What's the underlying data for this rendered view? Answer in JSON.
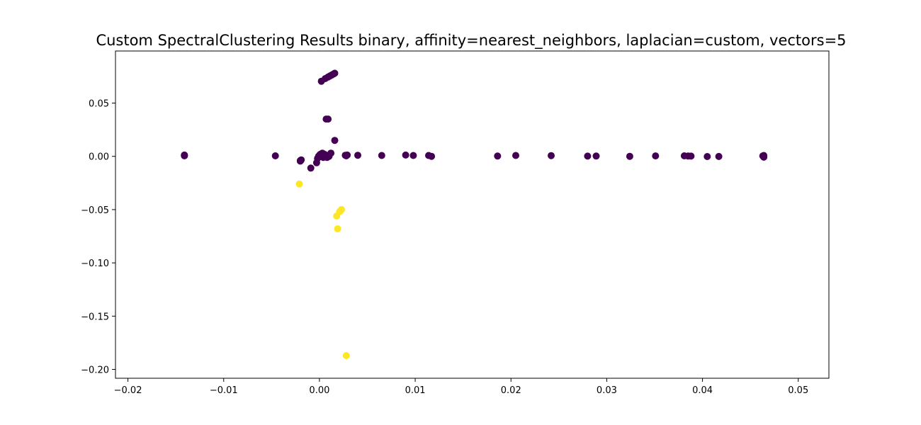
{
  "chart_data": {
    "type": "scatter",
    "title": "Custom SpectralClustering Results binary, affinity=nearest_neighbors, laplacian=custom, vectors=5",
    "xlabel": "",
    "ylabel": "",
    "xlim": [
      -0.0213,
      0.0532
    ],
    "ylim": [
      -0.2083,
      0.0989
    ],
    "xticks": [
      -0.02,
      -0.01,
      0.0,
      0.01,
      0.02,
      0.03,
      0.04,
      0.05
    ],
    "xtick_labels": [
      "−0.02",
      "−0.01",
      "0.00",
      "0.01",
      "0.02",
      "0.03",
      "0.04",
      "0.05"
    ],
    "yticks": [
      0.05,
      0.0,
      -0.05,
      -0.1,
      -0.15,
      -0.2
    ],
    "ytick_labels": [
      "0.05",
      "0.00",
      "−0.05",
      "−0.10",
      "−0.15",
      "−0.20"
    ],
    "grid": false,
    "legend": "none",
    "colors": {
      "cluster_0": "#440154",
      "cluster_1": "#fde725"
    },
    "series": [
      {
        "cluster": 0,
        "color": "#440154",
        "points": [
          [
            -0.0141,
            0.0012
          ],
          [
            -0.0141,
            0.0005
          ],
          [
            -0.0141,
            0.001
          ],
          [
            -0.0046,
            0.0005
          ],
          [
            -0.002,
            -0.004
          ],
          [
            -0.0019,
            -0.0033
          ],
          [
            -0.002,
            -0.0045
          ],
          [
            -0.0009,
            -0.011
          ],
          [
            -0.0003,
            -0.006
          ],
          [
            -0.0002,
            -0.002
          ],
          [
            -0.0001,
            0.0
          ],
          [
            0.0,
            0.001
          ],
          [
            0.0001,
            0.002
          ],
          [
            0.0002,
            0.0
          ],
          [
            0.0003,
            0.003
          ],
          [
            0.0004,
            -0.001
          ],
          [
            0.0005,
            0.002
          ],
          [
            0.0006,
            0.0
          ],
          [
            0.0007,
            0.001
          ],
          [
            0.0008,
            -0.001
          ],
          [
            0.001,
            0.0
          ],
          [
            0.0012,
            0.003
          ],
          [
            0.0002,
            0.0705
          ],
          [
            0.0006,
            0.073
          ],
          [
            0.0009,
            0.0745
          ],
          [
            0.0011,
            0.0755
          ],
          [
            0.0013,
            0.0765
          ],
          [
            0.0015,
            0.0775
          ],
          [
            0.0016,
            0.078
          ],
          [
            0.0007,
            0.035
          ],
          [
            0.0009,
            0.035
          ],
          [
            0.0016,
            0.015
          ],
          [
            0.0027,
            0.001
          ],
          [
            0.0028,
            0.0005
          ],
          [
            0.0029,
            0.0012
          ],
          [
            0.004,
            0.001
          ],
          [
            0.0065,
            0.0008
          ],
          [
            0.009,
            0.0012
          ],
          [
            0.0098,
            0.0008
          ],
          [
            0.0114,
            0.0008
          ],
          [
            0.0117,
            0.0
          ],
          [
            0.0186,
            0.0003
          ],
          [
            0.0205,
            0.0008
          ],
          [
            0.0242,
            0.0007
          ],
          [
            0.028,
            0.0002
          ],
          [
            0.0289,
            0.0003
          ],
          [
            0.0324,
            0.0
          ],
          [
            0.0351,
            0.0004
          ],
          [
            0.0381,
            0.0005
          ],
          [
            0.0385,
            0.0003
          ],
          [
            0.0388,
            0.0002
          ],
          [
            0.0405,
            -0.0002
          ],
          [
            0.0417,
            -0.0001
          ],
          [
            0.0464,
            0.0
          ],
          [
            0.0464,
            0.0008
          ],
          [
            0.0464,
            -0.0008
          ],
          [
            0.0463,
            0.0004
          ]
        ]
      },
      {
        "cluster": 1,
        "color": "#fde725",
        "points": [
          [
            -0.0021,
            -0.026
          ],
          [
            0.0023,
            -0.05
          ],
          [
            0.0022,
            -0.051
          ],
          [
            0.0021,
            -0.052
          ],
          [
            0.0018,
            -0.056
          ],
          [
            0.0019,
            -0.068
          ],
          [
            0.0028,
            -0.187
          ]
        ]
      }
    ]
  }
}
